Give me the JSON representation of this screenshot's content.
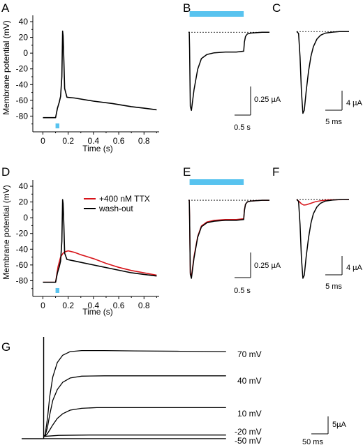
{
  "panels": {
    "A": "A",
    "B": "B",
    "C": "C",
    "D": "D",
    "E": "E",
    "F": "F",
    "G": "G"
  },
  "chart_data": [
    {
      "panel": "A",
      "type": "line",
      "xlabel": "Time (s)",
      "ylabel": "Membrane potential (mV)",
      "xlim": [
        -0.08,
        0.92
      ],
      "ylim": [
        -100,
        48
      ],
      "xticks": [
        0,
        0.2,
        0.4,
        0.6,
        0.8
      ],
      "xtick_labels": [
        "0",
        "0.2",
        "0.4",
        "0.6",
        "0.8"
      ],
      "yticks": [
        40,
        20,
        0,
        -20,
        -40,
        -60,
        -80
      ],
      "ytick_labels": [
        "40",
        "20",
        "0",
        "-20",
        "-40",
        "-60",
        "-80"
      ],
      "stimulus": {
        "start": 0.1,
        "end": 0.13,
        "color": "#58c3ef"
      },
      "series": [
        {
          "color": "#000000",
          "x": [
            0,
            0.1,
            0.115,
            0.13,
            0.14,
            0.15,
            0.156,
            0.16,
            0.166,
            0.172,
            0.19,
            0.25,
            0.4,
            0.55,
            0.7,
            0.8,
            0.9
          ],
          "y": [
            -82,
            -82,
            -70,
            -62,
            -55,
            -30,
            28,
            22,
            -10,
            -45,
            -56,
            -57,
            -61,
            -64,
            -68,
            -70,
            -72
          ]
        }
      ]
    },
    {
      "panel": "B",
      "type": "line",
      "scalebar": {
        "y_label": "0.25 µA",
        "x_label": "0.5 s",
        "x_value": 0.5,
        "y_value": 0.25
      },
      "xlim": [
        0,
        2.2
      ],
      "ylim": [
        -1.1,
        0.07
      ],
      "baseline": 0,
      "light_bar": {
        "start": 0.03,
        "end": 1.5,
        "color": "#58c3ef"
      },
      "series": [
        {
          "color": "#000000",
          "x": [
            0,
            0.02,
            0.03,
            0.05,
            0.08,
            0.15,
            0.25,
            0.35,
            0.5,
            0.7,
            1.0,
            1.3,
            1.5,
            1.52,
            1.55,
            1.6,
            1.7,
            2.0,
            2.2
          ],
          "y": [
            0,
            0,
            -0.2,
            -0.9,
            -0.95,
            -0.7,
            -0.45,
            -0.32,
            -0.27,
            -0.25,
            -0.24,
            -0.24,
            -0.23,
            -0.12,
            -0.05,
            -0.02,
            -0.01,
            0,
            0
          ]
        }
      ]
    },
    {
      "panel": "C",
      "type": "line",
      "scalebar": {
        "y_label": "4 µA",
        "x_label": "5 ms",
        "x_value": 5,
        "y_value": 4
      },
      "xlim": [
        0,
        22
      ],
      "ylim": [
        -14.5,
        0.8
      ],
      "baseline": 0,
      "series": [
        {
          "color": "#000000",
          "x": [
            0,
            0.8,
            1.4,
            2.0,
            2.6,
            3.2,
            4.0,
            5.0,
            6.0,
            7.0,
            8.5,
            10,
            12,
            15,
            18,
            22
          ],
          "y": [
            0,
            -0.3,
            -4,
            -9.5,
            -13,
            -12.5,
            -9.5,
            -6.3,
            -3.9,
            -2.4,
            -1.2,
            -0.6,
            -0.25,
            -0.1,
            0,
            0
          ]
        }
      ]
    },
    {
      "panel": "D",
      "type": "line",
      "xlabel": "Time (s)",
      "ylabel": "Membrane potential (mV)",
      "xlim": [
        -0.08,
        0.92
      ],
      "ylim": [
        -100,
        48
      ],
      "xticks": [
        0,
        0.2,
        0.4,
        0.6,
        0.8
      ],
      "xtick_labels": [
        "0",
        "0.2",
        "0.4",
        "0.6",
        "0.8"
      ],
      "yticks": [
        40,
        20,
        0,
        -20,
        -40,
        -60,
        -80
      ],
      "ytick_labels": [
        "40",
        "20",
        "0",
        "-20",
        "-40",
        "-60",
        "-80"
      ],
      "stimulus": {
        "start": 0.1,
        "end": 0.13,
        "color": "#58c3ef"
      },
      "legend_position": "top-right",
      "series": [
        {
          "name": "+400 nM TTX",
          "color": "#d7141a",
          "x": [
            0,
            0.1,
            0.12,
            0.14,
            0.16,
            0.18,
            0.2,
            0.25,
            0.3,
            0.4,
            0.5,
            0.6,
            0.7,
            0.8,
            0.9
          ],
          "y": [
            -82,
            -82,
            -62,
            -50,
            -45,
            -43,
            -42,
            -44,
            -47,
            -52,
            -58,
            -63,
            -67,
            -70,
            -73
          ]
        },
        {
          "name": "wash-out",
          "color": "#000000",
          "x": [
            0,
            0.1,
            0.115,
            0.13,
            0.14,
            0.15,
            0.156,
            0.16,
            0.166,
            0.172,
            0.19,
            0.25,
            0.4,
            0.55,
            0.7,
            0.8,
            0.9
          ],
          "y": [
            -82,
            -82,
            -70,
            -62,
            -55,
            -30,
            23,
            18,
            -10,
            -45,
            -53,
            -55,
            -60,
            -65,
            -70,
            -72,
            -74
          ]
        }
      ]
    },
    {
      "panel": "E",
      "type": "line",
      "scalebar": {
        "y_label": "0.25 µA",
        "x_label": "0.5 s",
        "x_value": 0.5,
        "y_value": 0.25
      },
      "xlim": [
        0,
        2.2
      ],
      "ylim": [
        -1.1,
        0.07
      ],
      "baseline": 0,
      "light_bar": {
        "start": 0.03,
        "end": 1.5,
        "color": "#58c3ef"
      },
      "series": [
        {
          "color": "#d7141a",
          "x": [
            0,
            0.02,
            0.03,
            0.05,
            0.08,
            0.15,
            0.25,
            0.35,
            0.5,
            0.7,
            1.0,
            1.3,
            1.5,
            1.52,
            1.55,
            1.6,
            1.7,
            2.0,
            2.2
          ],
          "y": [
            0,
            0,
            -0.2,
            -0.9,
            -0.95,
            -0.7,
            -0.45,
            -0.32,
            -0.27,
            -0.25,
            -0.24,
            -0.24,
            -0.23,
            -0.12,
            -0.05,
            -0.02,
            -0.01,
            0,
            0
          ]
        },
        {
          "color": "#000000",
          "x": [
            0,
            0.02,
            0.03,
            0.05,
            0.08,
            0.15,
            0.25,
            0.35,
            0.5,
            0.7,
            1.0,
            1.3,
            1.5,
            1.52,
            1.55,
            1.6,
            1.7,
            2.0,
            2.2
          ],
          "y": [
            0,
            0,
            -0.2,
            -0.92,
            -0.97,
            -0.72,
            -0.46,
            -0.33,
            -0.28,
            -0.26,
            -0.25,
            -0.25,
            -0.24,
            -0.13,
            -0.05,
            -0.02,
            -0.01,
            0,
            0
          ]
        }
      ]
    },
    {
      "panel": "F",
      "type": "line",
      "scalebar": {
        "y_label": "4 µA",
        "x_label": "5 ms",
        "x_value": 5,
        "y_value": 4
      },
      "xlim": [
        0,
        22
      ],
      "ylim": [
        -14.5,
        0.8
      ],
      "baseline": 0,
      "series": [
        {
          "color": "#d7141a",
          "x": [
            0,
            1,
            2,
            3,
            4,
            6,
            8,
            10,
            14,
            22
          ],
          "y": [
            0,
            -0.3,
            -0.7,
            -0.9,
            -0.85,
            -0.6,
            -0.35,
            -0.2,
            -0.05,
            0
          ]
        },
        {
          "color": "#000000",
          "x": [
            0,
            0.8,
            1.4,
            2.0,
            2.6,
            3.2,
            4.0,
            5.0,
            6.0,
            7.0,
            8.5,
            10,
            12,
            15,
            18,
            22
          ],
          "y": [
            0,
            -0.3,
            -4,
            -9.5,
            -12.8,
            -12.3,
            -9.3,
            -6.2,
            -3.8,
            -2.3,
            -1.2,
            -0.6,
            -0.25,
            -0.1,
            0,
            0
          ]
        }
      ]
    },
    {
      "panel": "G",
      "type": "line",
      "scalebar": {
        "y_label": "5µA",
        "x_label": "50 ms",
        "x_value": 50,
        "y_value": 5
      },
      "xlim": [
        -6,
        242
      ],
      "ylim": [
        -1.2,
        27
      ],
      "series": [
        {
          "name": "70 mV",
          "color": "#000000",
          "x": [
            0,
            2,
            5,
            8,
            12,
            18,
            25,
            35,
            50,
            80,
            120,
            180,
            240
          ],
          "y": [
            0,
            0.5,
            5,
            11,
            16.5,
            20.5,
            22.5,
            23.5,
            23.8,
            23.8,
            23.7,
            23.6,
            23.5
          ]
        },
        {
          "name": "40 mV",
          "color": "#000000",
          "x": [
            0,
            2,
            5,
            8,
            12,
            18,
            25,
            35,
            50,
            80,
            120,
            180,
            240
          ],
          "y": [
            0,
            0.3,
            2.5,
            6,
            10,
            13,
            15,
            16.2,
            16.7,
            16.8,
            16.8,
            16.8,
            16.8
          ]
        },
        {
          "name": "10 mV",
          "color": "#000000",
          "x": [
            0,
            2,
            5,
            8,
            12,
            18,
            25,
            35,
            50,
            70,
            100,
            150,
            240
          ],
          "y": [
            0,
            0.1,
            0.8,
            1.8,
            3.2,
            5,
            6.3,
            7.3,
            7.8,
            8.0,
            8.0,
            8.0,
            8.0
          ]
        },
        {
          "name": "-20 mV",
          "color": "#000000",
          "x": [
            0,
            5,
            20,
            60,
            120,
            240
          ],
          "y": [
            0,
            0.1,
            0.3,
            0.4,
            0.4,
            0.4
          ]
        },
        {
          "name": "-50 mV",
          "color": "#000000",
          "x": [
            0,
            240
          ],
          "y": [
            -0.6,
            -0.6
          ]
        }
      ]
    }
  ]
}
